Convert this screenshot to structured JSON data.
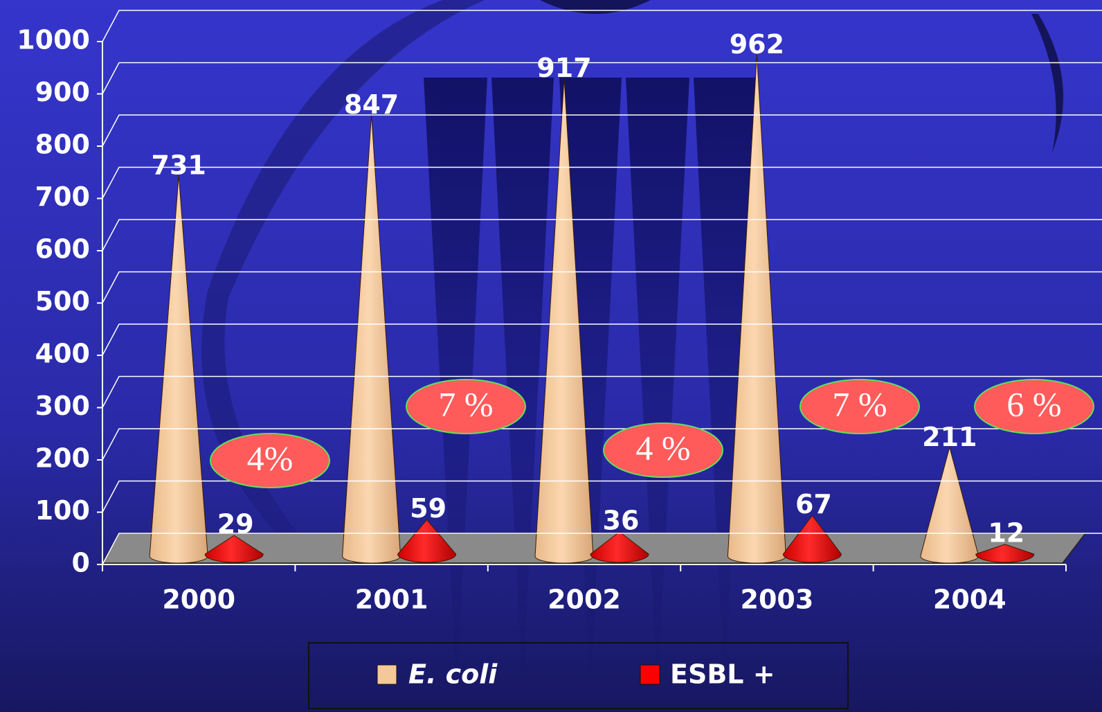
{
  "chart_data": {
    "type": "cone",
    "categories": [
      "2000",
      "2001",
      "2002",
      "2003",
      "2004"
    ],
    "series": [
      {
        "name": "E. coli",
        "color": "#f5c89a",
        "values": [
          731,
          847,
          917,
          962,
          211
        ]
      },
      {
        "name": "ESBL +",
        "color": "#ff0000",
        "values": [
          29,
          59,
          36,
          67,
          12
        ]
      }
    ],
    "ylim": [
      0,
      1000
    ],
    "yticks": [
      0,
      100,
      200,
      300,
      400,
      500,
      600,
      700,
      800,
      900,
      1000
    ],
    "grid": true,
    "annotations": [
      "4%",
      "7 %",
      "4 %",
      "7 %",
      "6 %"
    ]
  }
}
